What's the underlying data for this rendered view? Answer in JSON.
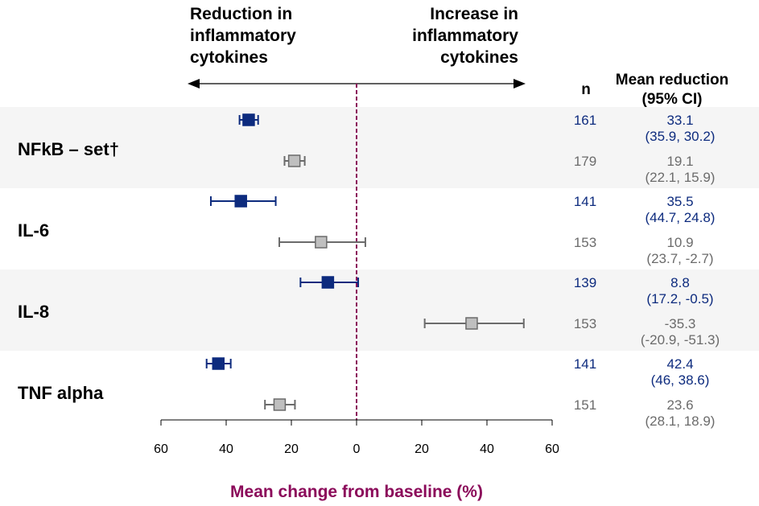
{
  "header": {
    "left_label": [
      "Reduction in",
      "inflammatory",
      "cytokines"
    ],
    "right_label": [
      "Increase in",
      "inflammatory",
      "cytokines"
    ]
  },
  "columns": {
    "n": "n",
    "mean_reduction": [
      "Mean reduction",
      "(95% CI)"
    ]
  },
  "colors": {
    "series_blue": "#0d2b7e",
    "series_gray": "#6b6b6b",
    "marker_gray_fill": "#bfbfbf",
    "band": "#f5f5f5",
    "reference_line": "#8b0a5a"
  },
  "chart_data": {
    "type": "forest",
    "xlabel": "Mean change from baseline (%)",
    "xlim": [
      60,
      -60
    ],
    "x_ticks": [
      {
        "value": 60,
        "label": "60"
      },
      {
        "value": 40,
        "label": "40"
      },
      {
        "value": 20,
        "label": "20"
      },
      {
        "value": 0,
        "label": "0"
      },
      {
        "value": -20,
        "label": "20"
      },
      {
        "value": -40,
        "label": "40"
      },
      {
        "value": -60,
        "label": "60"
      }
    ],
    "reference_line": 0,
    "groups": [
      {
        "label": "NFkB – set†",
        "rows": [
          {
            "series": "blue",
            "n": "161",
            "value": 33.1,
            "ci_low": 30.2,
            "ci_high": 35.9,
            "line1": "33.1",
            "line2": "(35.9, 30.2)"
          },
          {
            "series": "gray",
            "n": "179",
            "value": 19.1,
            "ci_low": 15.9,
            "ci_high": 22.1,
            "line1": "19.1",
            "line2": "(22.1, 15.9)"
          }
        ]
      },
      {
        "label": "IL-6",
        "rows": [
          {
            "series": "blue",
            "n": "141",
            "value": 35.5,
            "ci_low": 24.8,
            "ci_high": 44.7,
            "line1": "35.5",
            "line2": "(44.7, 24.8)"
          },
          {
            "series": "gray",
            "n": "153",
            "value": 10.9,
            "ci_low": -2.7,
            "ci_high": 23.7,
            "line1": "10.9",
            "line2": "(23.7, -2.7)"
          }
        ]
      },
      {
        "label": "IL-8",
        "rows": [
          {
            "series": "blue",
            "n": "139",
            "value": 8.8,
            "ci_low": -0.5,
            "ci_high": 17.2,
            "line1": "8.8",
            "line2": "(17.2, -0.5)"
          },
          {
            "series": "gray",
            "n": "153",
            "value": -35.3,
            "ci_low": -51.3,
            "ci_high": -20.9,
            "line1": "-35.3",
            "line2": "(-20.9, -51.3)"
          }
        ]
      },
      {
        "label": "TNF alpha",
        "rows": [
          {
            "series": "blue",
            "n": "141",
            "value": 42.4,
            "ci_low": 38.6,
            "ci_high": 46,
            "line1": "42.4",
            "line2": "(46, 38.6)"
          },
          {
            "series": "gray",
            "n": "151",
            "value": 23.6,
            "ci_low": 18.9,
            "ci_high": 28.1,
            "line1": "23.6",
            "line2": "(28.1, 18.9)"
          }
        ]
      }
    ]
  }
}
